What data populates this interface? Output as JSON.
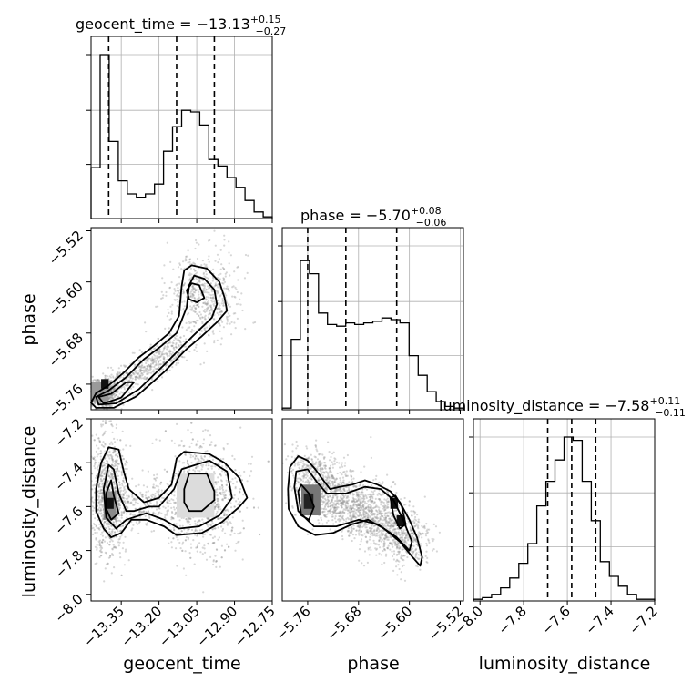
{
  "chart_data": {
    "type": "corner",
    "parameters": [
      "geocent_time",
      "phase",
      "luminosity_distance"
    ],
    "titles": [
      {
        "name": "geocent_time",
        "median": "−13.13",
        "plus": "+0.15",
        "minus": "−0.27"
      },
      {
        "name": "phase",
        "median": "−5.70",
        "plus": "+0.08",
        "minus": "−0.06"
      },
      {
        "name": "luminosity_distance",
        "median": "−7.58",
        "plus": "+0.11",
        "minus": "−0.11"
      }
    ],
    "ranges": {
      "geocent_time": [
        -13.47,
        -12.75
      ],
      "phase": [
        -5.8,
        -5.515
      ],
      "luminosity_distance": [
        -8.03,
        -7.2
      ]
    },
    "ticks": {
      "geocent_time": [
        -13.35,
        -13.2,
        -13.05,
        -12.9,
        -12.75
      ],
      "geocent_time_labels": [
        "−13.35",
        "−13.20",
        "−13.05",
        "−12.90",
        "−12.75"
      ],
      "phase_x": [
        -5.76,
        -5.68,
        -5.6,
        -5.52
      ],
      "phase_x_labels": [
        "−5.76",
        "−5.68",
        "−5.60",
        "−5.52"
      ],
      "phase_y": [
        -5.52,
        -5.6,
        -5.68,
        -5.76
      ],
      "phase_y_labels": [
        "−5.52",
        "−5.60",
        "−5.68",
        "−5.76"
      ],
      "luminosity_distance_x": [
        -8.0,
        -7.8,
        -7.6,
        -7.4,
        -7.2
      ],
      "luminosity_distance_x_labels": [
        "−8.0",
        "−7.8",
        "−7.6",
        "−7.4",
        "−7.2"
      ],
      "luminosity_distance_y": [
        -7.2,
        -7.4,
        -7.6,
        -7.8,
        -8.0
      ],
      "luminosity_distance_y_labels": [
        "−7.2",
        "−7.4",
        "−7.6",
        "−7.8",
        "−8.0"
      ]
    },
    "quantiles": {
      "geocent_time": [
        -13.4,
        -13.13,
        -12.98
      ],
      "phase": [
        -5.76,
        -5.7,
        -5.62
      ],
      "luminosity_distance": [
        -7.69,
        -7.58,
        -7.47
      ]
    },
    "histograms": {
      "geocent_time": {
        "edges": [
          -13.47,
          -13.434,
          -13.398,
          -13.362,
          -13.326,
          -13.29,
          -13.254,
          -13.218,
          -13.182,
          -13.146,
          -13.11,
          -13.074,
          -13.038,
          -13.002,
          -12.966,
          -12.93,
          -12.894,
          -12.858,
          -12.822,
          -12.786,
          -12.75
        ],
        "counts": [
          0.31,
          1.0,
          0.47,
          0.23,
          0.15,
          0.13,
          0.15,
          0.21,
          0.41,
          0.56,
          0.66,
          0.65,
          0.57,
          0.36,
          0.32,
          0.25,
          0.19,
          0.11,
          0.04,
          0.01
        ]
      },
      "phase": {
        "edges": [
          -5.8,
          -5.7858,
          -5.7715,
          -5.7572,
          -5.743,
          -5.7288,
          -5.7145,
          -5.7002,
          -5.686,
          -5.6718,
          -5.6575,
          -5.6432,
          -5.629,
          -5.6148,
          -5.6005,
          -5.5862,
          -5.572,
          -5.5578,
          -5.5435,
          -5.5292,
          -5.515
        ],
        "counts": [
          0.01,
          0.43,
          0.91,
          0.83,
          0.59,
          0.52,
          0.51,
          0.53,
          0.52,
          0.53,
          0.54,
          0.56,
          0.55,
          0.53,
          0.33,
          0.21,
          0.11,
          0.05,
          0.02,
          0.01
        ]
      },
      "luminosity_distance": {
        "edges": [
          -8.03,
          -7.9885,
          -7.947,
          -7.9055,
          -7.864,
          -7.8225,
          -7.781,
          -7.7395,
          -7.698,
          -7.6565,
          -7.615,
          -7.5735,
          -7.532,
          -7.4905,
          -7.449,
          -7.4075,
          -7.366,
          -7.3245,
          -7.283,
          -7.2415,
          -7.2
        ],
        "counts": [
          0.01,
          0.02,
          0.04,
          0.08,
          0.14,
          0.23,
          0.35,
          0.58,
          0.73,
          0.86,
          1.0,
          0.98,
          0.73,
          0.49,
          0.24,
          0.15,
          0.09,
          0.04,
          0.01,
          0.01
        ]
      }
    },
    "contours": {
      "phase_vs_geocent_time": [
        [
          [
            -13.45,
            -5.774
          ],
          [
            -13.4,
            -5.762
          ],
          [
            -13.34,
            -5.742
          ],
          [
            -13.28,
            -5.718
          ],
          [
            -13.22,
            -5.7
          ],
          [
            -13.16,
            -5.68
          ],
          [
            -13.12,
            -5.653
          ],
          [
            -13.11,
            -5.607
          ],
          [
            -13.1,
            -5.582
          ],
          [
            -13.07,
            -5.574
          ],
          [
            -13.01,
            -5.579
          ],
          [
            -12.96,
            -5.6
          ],
          [
            -12.94,
            -5.624
          ],
          [
            -12.93,
            -5.645
          ],
          [
            -12.97,
            -5.663
          ],
          [
            -13.03,
            -5.685
          ],
          [
            -13.09,
            -5.705
          ],
          [
            -13.18,
            -5.741
          ],
          [
            -13.29,
            -5.779
          ],
          [
            -13.38,
            -5.797
          ],
          [
            -13.45,
            -5.797
          ],
          [
            -13.47,
            -5.789
          ]
        ],
        [
          [
            -13.45,
            -5.78
          ],
          [
            -13.4,
            -5.77
          ],
          [
            -13.33,
            -5.749
          ],
          [
            -13.26,
            -5.721
          ],
          [
            -13.19,
            -5.7
          ],
          [
            -13.13,
            -5.68
          ],
          [
            -13.09,
            -5.64
          ],
          [
            -13.08,
            -5.605
          ],
          [
            -13.06,
            -5.59
          ],
          [
            -13.02,
            -5.595
          ],
          [
            -12.98,
            -5.612
          ],
          [
            -12.97,
            -5.635
          ],
          [
            -12.99,
            -5.656
          ],
          [
            -13.04,
            -5.675
          ],
          [
            -13.1,
            -5.698
          ],
          [
            -13.18,
            -5.73
          ],
          [
            -13.28,
            -5.768
          ],
          [
            -13.37,
            -5.79
          ],
          [
            -13.44,
            -5.792
          ]
        ],
        [
          [
            -13.44,
            -5.78
          ],
          [
            -13.39,
            -5.775
          ],
          [
            -13.33,
            -5.757
          ],
          [
            -13.3,
            -5.757
          ],
          [
            -13.35,
            -5.781
          ],
          [
            -13.42,
            -5.79
          ]
        ],
        [
          [
            -13.09,
            -5.613
          ],
          [
            -13.07,
            -5.602
          ],
          [
            -13.04,
            -5.605
          ],
          [
            -13.02,
            -5.625
          ],
          [
            -13.05,
            -5.632
          ],
          [
            -13.08,
            -5.627
          ]
        ]
      ],
      "luminosity_distance_vs_geocent_time": [
        [
          [
            -13.45,
            -7.52
          ],
          [
            -13.43,
            -7.4
          ],
          [
            -13.4,
            -7.33
          ],
          [
            -13.36,
            -7.34
          ],
          [
            -13.34,
            -7.44
          ],
          [
            -13.32,
            -7.52
          ],
          [
            -13.26,
            -7.58
          ],
          [
            -13.2,
            -7.56
          ],
          [
            -13.15,
            -7.5
          ],
          [
            -13.13,
            -7.38
          ],
          [
            -13.1,
            -7.35
          ],
          [
            -13.0,
            -7.36
          ],
          [
            -12.94,
            -7.4
          ],
          [
            -12.88,
            -7.47
          ],
          [
            -12.85,
            -7.56
          ],
          [
            -12.88,
            -7.6
          ],
          [
            -12.95,
            -7.67
          ],
          [
            -13.03,
            -7.72
          ],
          [
            -13.13,
            -7.73
          ],
          [
            -13.18,
            -7.69
          ],
          [
            -13.25,
            -7.66
          ],
          [
            -13.31,
            -7.66
          ],
          [
            -13.35,
            -7.72
          ],
          [
            -13.39,
            -7.74
          ],
          [
            -13.42,
            -7.7
          ],
          [
            -13.45,
            -7.62
          ]
        ],
        [
          [
            -13.42,
            -7.52
          ],
          [
            -13.4,
            -7.41
          ],
          [
            -13.38,
            -7.43
          ],
          [
            -13.36,
            -7.54
          ],
          [
            -13.33,
            -7.62
          ],
          [
            -13.3,
            -7.62
          ],
          [
            -13.24,
            -7.6
          ],
          [
            -13.2,
            -7.6
          ],
          [
            -13.14,
            -7.52
          ],
          [
            -13.11,
            -7.43
          ],
          [
            -13.0,
            -7.39
          ],
          [
            -12.93,
            -7.44
          ],
          [
            -12.91,
            -7.56
          ],
          [
            -12.96,
            -7.64
          ],
          [
            -13.04,
            -7.69
          ],
          [
            -13.12,
            -7.7
          ],
          [
            -13.18,
            -7.66
          ],
          [
            -13.25,
            -7.63
          ],
          [
            -13.33,
            -7.66
          ],
          [
            -13.37,
            -7.7
          ],
          [
            -13.41,
            -7.65
          ]
        ],
        [
          [
            -13.41,
            -7.54
          ],
          [
            -13.39,
            -7.48
          ],
          [
            -13.38,
            -7.55
          ],
          [
            -13.36,
            -7.63
          ],
          [
            -13.39,
            -7.66
          ],
          [
            -13.41,
            -7.61
          ]
        ],
        [
          [
            -13.1,
            -7.52
          ],
          [
            -13.08,
            -7.45
          ],
          [
            -13.01,
            -7.45
          ],
          [
            -12.98,
            -7.53
          ],
          [
            -12.98,
            -7.57
          ],
          [
            -13.03,
            -7.62
          ],
          [
            -13.08,
            -7.62
          ],
          [
            -13.1,
            -7.58
          ]
        ]
      ],
      "luminosity_distance_vs_phase": [
        [
          [
            -5.791,
            -7.52
          ],
          [
            -5.788,
            -7.42
          ],
          [
            -5.775,
            -7.37
          ],
          [
            -5.76,
            -7.39
          ],
          [
            -5.748,
            -7.43
          ],
          [
            -5.738,
            -7.47
          ],
          [
            -5.725,
            -7.52
          ],
          [
            -5.71,
            -7.51
          ],
          [
            -5.69,
            -7.5
          ],
          [
            -5.67,
            -7.48
          ],
          [
            -5.65,
            -7.5
          ],
          [
            -5.63,
            -7.53
          ],
          [
            -5.615,
            -7.58
          ],
          [
            -5.6,
            -7.66
          ],
          [
            -5.588,
            -7.74
          ],
          [
            -5.58,
            -7.83
          ],
          [
            -5.583,
            -7.87
          ],
          [
            -5.595,
            -7.83
          ],
          [
            -5.615,
            -7.76
          ],
          [
            -5.64,
            -7.7
          ],
          [
            -5.665,
            -7.66
          ],
          [
            -5.69,
            -7.68
          ],
          [
            -5.72,
            -7.72
          ],
          [
            -5.748,
            -7.73
          ],
          [
            -5.775,
            -7.69
          ],
          [
            -5.79,
            -7.61
          ]
        ],
        [
          [
            -5.781,
            -7.51
          ],
          [
            -5.778,
            -7.44
          ],
          [
            -5.76,
            -7.43
          ],
          [
            -5.745,
            -7.49
          ],
          [
            -5.73,
            -7.54
          ],
          [
            -5.7,
            -7.54
          ],
          [
            -5.67,
            -7.51
          ],
          [
            -5.645,
            -7.52
          ],
          [
            -5.625,
            -7.57
          ],
          [
            -5.61,
            -7.66
          ],
          [
            -5.596,
            -7.76
          ],
          [
            -5.6,
            -7.8
          ],
          [
            -5.62,
            -7.74
          ],
          [
            -5.65,
            -7.68
          ],
          [
            -5.68,
            -7.66
          ],
          [
            -5.715,
            -7.69
          ],
          [
            -5.75,
            -7.69
          ],
          [
            -5.775,
            -7.62
          ]
        ],
        [
          [
            -5.775,
            -7.53
          ],
          [
            -5.77,
            -7.5
          ],
          [
            -5.758,
            -7.54
          ],
          [
            -5.75,
            -7.6
          ],
          [
            -5.758,
            -7.66
          ],
          [
            -5.77,
            -7.64
          ]
        ],
        [
          [
            -5.63,
            -7.56
          ],
          [
            -5.622,
            -7.55
          ],
          [
            -5.612,
            -7.6
          ],
          [
            -5.606,
            -7.68
          ],
          [
            -5.615,
            -7.7
          ],
          [
            -5.625,
            -7.64
          ]
        ]
      ]
    },
    "axis_labels": {
      "x": [
        "geocent_time",
        "phase",
        "luminosity_distance"
      ],
      "y": [
        "phase",
        "luminosity_distance"
      ]
    }
  }
}
